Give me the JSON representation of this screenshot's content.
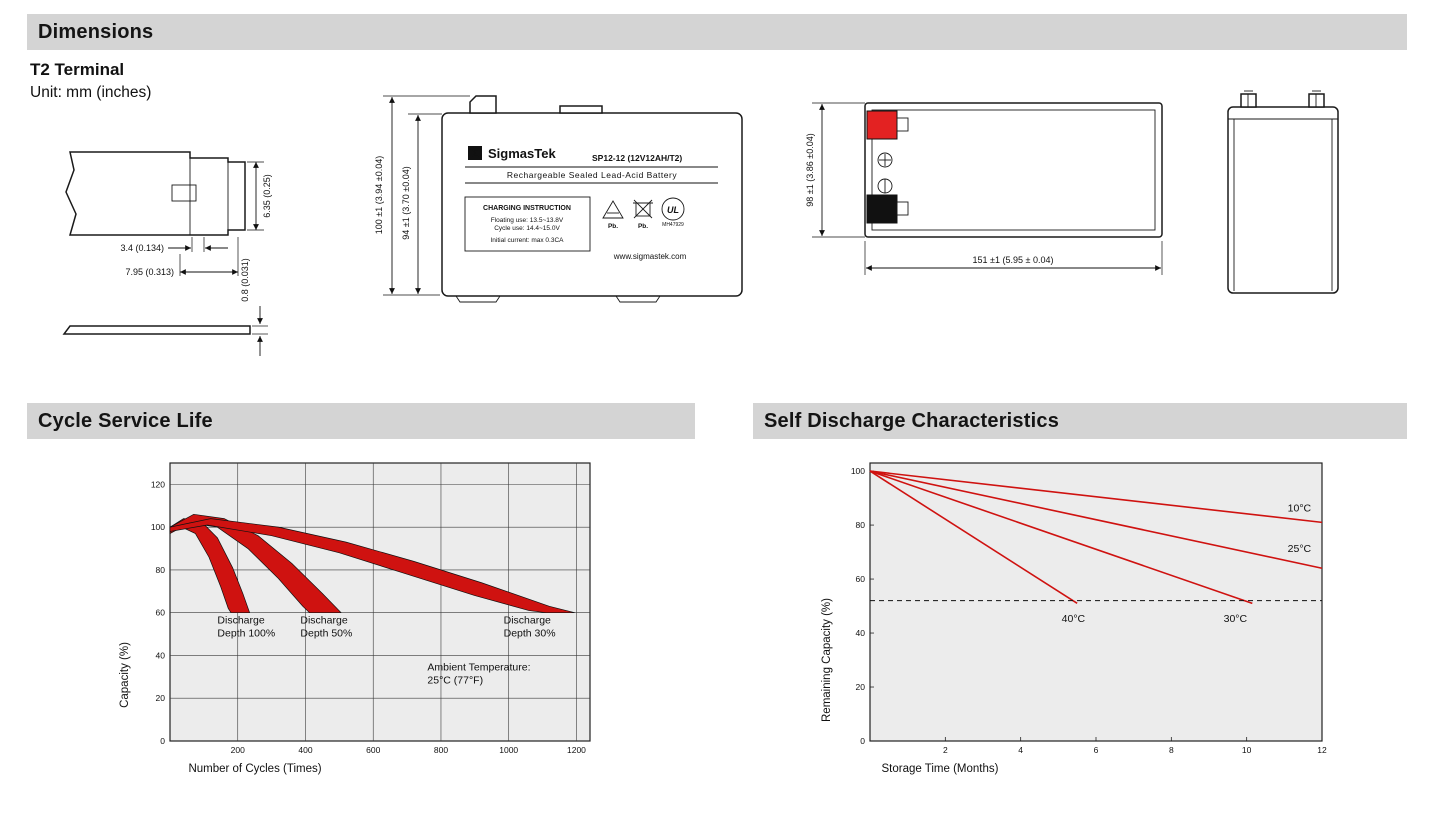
{
  "sections": {
    "dimensions": {
      "title": "Dimensions"
    },
    "cycle_life": {
      "title": "Cycle Service Life"
    },
    "self_discharge": {
      "title": "Self Discharge Characteristics"
    }
  },
  "terminal_detail": {
    "heading": "T2 Terminal",
    "unit_note": "Unit: mm (inches)",
    "dim_tab_height": "6.35 (0.25)",
    "dim_barb_width": "3.4 (0.134)",
    "dim_tab_width": "7.95 (0.313)",
    "dim_tab_thickness": "0.8 (0.031)"
  },
  "front_view": {
    "dim_total_height": "100 ±1 (3.94 ±0.04)",
    "dim_case_height": "94 ±1 (3.70 ±0.04)",
    "logo_glyph": "Σ",
    "brand": "SigmasTek",
    "model": "SP12-12 (12V12AH/T2)",
    "subtitle": "Rechargeable Sealed Lead-Acid Battery",
    "charging_title": "CHARGING INSTRUCTION",
    "charging_line1": "Floating use: 13.5~13.8V",
    "charging_line2": "Cycle use: 14.4~15.0V",
    "charging_line3": "Initial current: max 0.3CA",
    "pb_recycle_label": "Pb.",
    "pb_bin_label": "Pb.",
    "ul_label": "UL",
    "ul_code": "MH47929",
    "website": "www.sigmastek.com"
  },
  "side_view": {
    "dim_height": "98 ±1 (3.86 ±0.04)",
    "dim_length": "151 ±1 (5.95 ± 0.04)"
  },
  "colors": {
    "section_header_bg": "#d4d4d4",
    "red": "#cf1210",
    "terminal_red": "#e32222",
    "terminal_black": "#111111",
    "plot_bg": "#ececec"
  },
  "chart_data": [
    {
      "id": "cycle_service_life",
      "type": "area",
      "title": "Cycle Service Life",
      "xlabel": "Number of Cycles (Times)",
      "ylabel": "Capacity (%)",
      "xlim": [
        0,
        1240
      ],
      "ylim": [
        0,
        130
      ],
      "xticks": [
        200,
        400,
        600,
        800,
        1000,
        1200
      ],
      "yticks": [
        0,
        20,
        40,
        60,
        80,
        100,
        120
      ],
      "grid": true,
      "plot_bg": "#ececec",
      "band_color": "#cf1210",
      "bands": [
        {
          "name": "Discharge Depth 100%",
          "upper": [
            [
              0,
              100
            ],
            [
              40,
              104
            ],
            [
              90,
              103
            ],
            [
              140,
              95
            ],
            [
              185,
              81
            ],
            [
              215,
              69
            ],
            [
              235,
              60
            ]
          ],
          "lower": [
            [
              0,
              97
            ],
            [
              35,
              100
            ],
            [
              75,
              97
            ],
            [
              115,
              86
            ],
            [
              150,
              72
            ],
            [
              172,
              62
            ],
            [
              180,
              60
            ]
          ]
        },
        {
          "name": "Discharge Depth 50%",
          "upper": [
            [
              0,
              100
            ],
            [
              70,
              106
            ],
            [
              160,
              104
            ],
            [
              260,
              96
            ],
            [
              360,
              83
            ],
            [
              450,
              69
            ],
            [
              505,
              60
            ]
          ],
          "lower": [
            [
              0,
              98
            ],
            [
              60,
              102
            ],
            [
              140,
              100
            ],
            [
              230,
              90
            ],
            [
              320,
              76
            ],
            [
              392,
              63
            ],
            [
              412,
              60
            ]
          ]
        },
        {
          "name": "Discharge Depth 30%",
          "upper": [
            [
              0,
              100
            ],
            [
              120,
              104
            ],
            [
              320,
              100
            ],
            [
              520,
              93
            ],
            [
              720,
              84
            ],
            [
              920,
              74
            ],
            [
              1120,
              63
            ],
            [
              1195,
              60
            ]
          ],
          "lower": [
            [
              0,
              98
            ],
            [
              110,
              101
            ],
            [
              300,
              96
            ],
            [
              500,
              88
            ],
            [
              700,
              78
            ],
            [
              900,
              68
            ],
            [
              1060,
              61
            ],
            [
              1110,
              60
            ]
          ]
        }
      ],
      "annotations": [
        {
          "text": "Discharge\nDepth 100%",
          "x": 140,
          "y": 55
        },
        {
          "text": "Discharge\nDepth 50%",
          "x": 385,
          "y": 55
        },
        {
          "text": "Discharge\nDepth 30%",
          "x": 985,
          "y": 55
        },
        {
          "text": "Ambient Temperature:\n25°C (77°F)",
          "x": 760,
          "y": 33
        }
      ]
    },
    {
      "id": "self_discharge",
      "type": "line",
      "title": "Self Discharge Characteristics",
      "xlabel": "Storage Time (Months)",
      "ylabel": "Remaining Capacity (%)",
      "xlim": [
        0,
        12
      ],
      "ylim": [
        0,
        103
      ],
      "xticks": [
        2,
        4,
        6,
        8,
        10,
        12
      ],
      "yticks": [
        0,
        20,
        40,
        60,
        80,
        100
      ],
      "grid": false,
      "plot_bg": "#ececec",
      "line_color": "#cf1210",
      "series": [
        {
          "name": "40°C",
          "points": [
            [
              0,
              100
            ],
            [
              5.5,
              51
            ]
          ],
          "label_x": 5.4,
          "label_y": 44
        },
        {
          "name": "30°C",
          "points": [
            [
              0,
              100
            ],
            [
              10.15,
              51
            ]
          ],
          "label_x": 9.7,
          "label_y": 44
        },
        {
          "name": "25°C",
          "points": [
            [
              0,
              100
            ],
            [
              12,
              64
            ]
          ],
          "label_x": 11.4,
          "label_y": 70
        },
        {
          "name": "10°C",
          "points": [
            [
              0,
              100
            ],
            [
              12,
              81
            ]
          ],
          "label_x": 11.4,
          "label_y": 85
        }
      ],
      "reference_line": {
        "y": 52,
        "style": "dashed"
      }
    }
  ]
}
